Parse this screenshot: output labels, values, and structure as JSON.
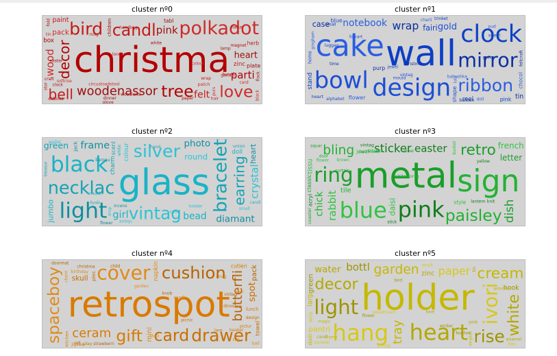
{
  "chart_data": [
    {
      "type": "wordcloud",
      "title": "cluster nº0",
      "palette": [
        "#b30000",
        "#c41a1a",
        "#d02a2a",
        "#9e0c0c"
      ],
      "words": [
        {
          "text": "christma",
          "weight": 1.0
        },
        {
          "text": "candl",
          "weight": 0.85
        },
        {
          "text": "polkadot",
          "weight": 0.55
        },
        {
          "text": "woodenassor",
          "weight": 0.42
        },
        {
          "text": "tree",
          "weight": 0.45
        },
        {
          "text": "bird",
          "weight": 0.36
        },
        {
          "text": "love",
          "weight": 0.32
        },
        {
          "text": "heart",
          "weight": 0.25
        },
        {
          "text": "decor",
          "weight": 0.25
        },
        {
          "text": "bell",
          "weight": 0.25
        },
        {
          "text": "wood",
          "weight": 0.22
        },
        {
          "text": "pink",
          "weight": 0.22
        },
        {
          "text": "parti",
          "weight": 0.22
        },
        {
          "text": "felt",
          "weight": 0.2
        },
        {
          "text": "pack",
          "weight": 0.17
        },
        {
          "text": "children",
          "weight": 0.17
        },
        {
          "text": "magnet",
          "weight": 0.14
        },
        {
          "text": "paint",
          "weight": 0.14
        },
        {
          "text": "purs",
          "weight": 0.14
        },
        {
          "text": "tabl",
          "weight": 0.14
        },
        {
          "text": "box",
          "weight": 0.12
        },
        {
          "text": "zinc",
          "weight": 0.12
        },
        {
          "text": "patch",
          "weight": 0.1
        },
        {
          "text": "plate",
          "weight": 0.1
        },
        {
          "text": "bunni",
          "weight": 0.1
        },
        {
          "text": "herb",
          "weight": 0.09
        },
        {
          "text": "hair",
          "weight": 0.09
        },
        {
          "text": "flock",
          "weight": 0.09
        },
        {
          "text": "cabinet",
          "weight": 0.09
        },
        {
          "text": "london",
          "weight": 0.09
        },
        {
          "text": "softrise",
          "weight": 0.08
        },
        {
          "text": "white",
          "weight": 0.08
        },
        {
          "text": "craft",
          "weight": 0.08
        },
        {
          "text": "wrap",
          "weight": 0.08
        },
        {
          "text": "colour",
          "weight": 0.07
        },
        {
          "text": "lamp",
          "weight": 0.07
        },
        {
          "text": "fold",
          "weight": 0.07
        },
        {
          "text": "star",
          "weight": 0.07
        },
        {
          "text": "black",
          "weight": 0.07
        },
        {
          "text": "dinner",
          "weight": 0.07
        },
        {
          "text": "natur",
          "weight": 0.06
        },
        {
          "text": "garland",
          "weight": 0.06
        },
        {
          "text": "circustoadstool",
          "weight": 0.06
        },
        {
          "text": "easter",
          "weight": 0.06
        },
        {
          "text": "woodland",
          "weight": 0.06
        },
        {
          "text": "handbag",
          "weight": 0.06
        },
        {
          "text": "tin",
          "weight": 0.06
        },
        {
          "text": "glove",
          "weight": 0.05
        },
        {
          "text": "paper",
          "weight": 0.05
        },
        {
          "text": "mug",
          "weight": 0.05
        },
        {
          "text": "card",
          "weight": 0.05
        },
        {
          "text": "clock",
          "weight": 0.05
        }
      ]
    },
    {
      "type": "wordcloud",
      "title": "cluster nº1",
      "palette": [
        "#0d3fc4",
        "#1c4fd6",
        "#2a5ee0",
        "#0b2fa0"
      ],
      "words": [
        {
          "text": "wall",
          "weight": 1.0
        },
        {
          "text": "design",
          "weight": 0.78
        },
        {
          "text": "cake",
          "weight": 0.78
        },
        {
          "text": "mirror",
          "weight": 0.6
        },
        {
          "text": "clock",
          "weight": 0.58
        },
        {
          "text": "bowl",
          "weight": 0.55
        },
        {
          "text": "ribbon",
          "weight": 0.5
        },
        {
          "text": "wrap",
          "weight": 0.48
        },
        {
          "text": "stand",
          "weight": 0.4
        },
        {
          "text": "gold",
          "weight": 0.36
        },
        {
          "text": "notebook",
          "weight": 0.28
        },
        {
          "text": "case",
          "weight": 0.28
        },
        {
          "text": "fairi",
          "weight": 0.28
        },
        {
          "text": "home",
          "weight": 0.25
        },
        {
          "text": "gingham",
          "weight": 0.22
        },
        {
          "text": "feltcraft",
          "weight": 0.2
        },
        {
          "text": "reel",
          "weight": 0.18
        },
        {
          "text": "blue",
          "weight": 0.16
        },
        {
          "text": "flower",
          "weight": 0.16
        },
        {
          "text": "purp",
          "weight": 0.15
        },
        {
          "text": "pink",
          "weight": 0.15
        },
        {
          "text": "shape",
          "weight": 0.15
        },
        {
          "text": "chocol",
          "weight": 0.14
        },
        {
          "text": "tin",
          "weight": 0.14
        },
        {
          "text": "trinket",
          "weight": 0.13
        },
        {
          "text": "folkart",
          "weight": 0.12
        },
        {
          "text": "lola",
          "weight": 0.1
        },
        {
          "text": "balloon",
          "weight": 0.1
        },
        {
          "text": "heart",
          "weight": 0.1
        },
        {
          "text": "alphabet",
          "weight": 0.1
        },
        {
          "text": "doll",
          "weight": 0.09
        },
        {
          "text": "time",
          "weight": 0.08
        },
        {
          "text": "sweet",
          "weight": 0.08
        },
        {
          "text": "mould",
          "weight": 0.08
        },
        {
          "text": "charli",
          "weight": 0.08
        },
        {
          "text": "christma",
          "weight": 0.08
        },
        {
          "text": "luggag",
          "weight": 0.08
        },
        {
          "text": "vintag",
          "weight": 0.08
        },
        {
          "text": "babushka",
          "weight": 0.07
        },
        {
          "text": "green",
          "weight": 0.07
        },
        {
          "text": "small",
          "weight": 0.07
        },
        {
          "text": "jewel",
          "weight": 0.07
        },
        {
          "text": "pud",
          "weight": 0.07
        }
      ]
    },
    {
      "type": "wordcloud",
      "title": "cluster nº2",
      "palette": [
        "#19b3c6",
        "#14a3b5",
        "#2cc2d4",
        "#0e8fa1"
      ],
      "words": [
        {
          "text": "glass",
          "weight": 1.0
        },
        {
          "text": "necklac",
          "weight": 0.95
        },
        {
          "text": "vintag",
          "weight": 0.48
        },
        {
          "text": "light",
          "weight": 0.5
        },
        {
          "text": "black",
          "weight": 0.5
        },
        {
          "text": "bracelet",
          "weight": 0.38
        },
        {
          "text": "silver",
          "weight": 0.36
        },
        {
          "text": "frame",
          "weight": 0.3
        },
        {
          "text": "bead",
          "weight": 0.28
        },
        {
          "text": "earring",
          "weight": 0.25
        },
        {
          "text": "crystal",
          "weight": 0.22
        },
        {
          "text": "photo",
          "weight": 0.18
        },
        {
          "text": "jumbo",
          "weight": 0.18
        },
        {
          "text": "green",
          "weight": 0.16
        },
        {
          "text": "round",
          "weight": 0.14
        },
        {
          "text": "diamant",
          "weight": 0.12
        },
        {
          "text": "girl",
          "weight": 0.14
        },
        {
          "text": "charm",
          "weight": 0.12
        },
        {
          "text": "colour",
          "weight": 0.12
        },
        {
          "text": "heart",
          "weight": 0.12
        },
        {
          "text": "doll",
          "weight": 0.12
        },
        {
          "text": "union",
          "weight": 0.1
        },
        {
          "text": "holder",
          "weight": 0.1
        },
        {
          "text": "incens",
          "weight": 0.1
        },
        {
          "text": "white",
          "weight": 0.1
        },
        {
          "text": "scent",
          "weight": 0.09
        },
        {
          "text": "small",
          "weight": 0.09
        },
        {
          "text": "flower",
          "weight": 0.09
        },
        {
          "text": "candl",
          "weight": 0.09
        },
        {
          "text": "hand",
          "weight": 0.09
        },
        {
          "text": "antiqu",
          "weight": 0.08
        },
        {
          "text": "jack",
          "weight": 0.08
        },
        {
          "text": "coffe",
          "weight": 0.08
        },
        {
          "text": "funki",
          "weight": 0.08
        },
        {
          "text": "drop",
          "weight": 0.08
        },
        {
          "text": "baroqu",
          "weight": 0.08
        },
        {
          "text": "wreath",
          "weight": 0.07
        },
        {
          "text": "treasur",
          "weight": 0.07
        },
        {
          "text": "wallet",
          "weight": 0.07
        }
      ]
    },
    {
      "type": "wordcloud",
      "title": "cluster nº3",
      "palette": [
        "#1a9e2a",
        "#22b233",
        "#0f7d1c",
        "#33c244"
      ],
      "words": [
        {
          "text": "metal",
          "weight": 1.0
        },
        {
          "text": "sign",
          "weight": 0.8
        },
        {
          "text": "pink",
          "weight": 0.7
        },
        {
          "text": "blue",
          "weight": 0.7
        },
        {
          "text": "ring",
          "weight": 0.45
        },
        {
          "text": "paisley",
          "weight": 0.32
        },
        {
          "text": "sticker",
          "weight": 0.26
        },
        {
          "text": "rabbit",
          "weight": 0.22
        },
        {
          "text": "retro",
          "weight": 0.28
        },
        {
          "text": "bling",
          "weight": 0.22
        },
        {
          "text": "easter",
          "weight": 0.22
        },
        {
          "text": "french",
          "weight": 0.22
        },
        {
          "text": "letter",
          "weight": 0.22
        },
        {
          "text": "chick",
          "weight": 0.2
        },
        {
          "text": "lantern",
          "weight": 0.2
        },
        {
          "text": "daisi",
          "weight": 0.2
        },
        {
          "text": "dish",
          "weight": 0.18
        },
        {
          "text": "bathroom",
          "weight": 0.17
        },
        {
          "text": "vintag",
          "weight": 0.16
        },
        {
          "text": "style",
          "weight": 0.14
        },
        {
          "text": "classic",
          "weight": 0.16
        },
        {
          "text": "tile",
          "weight": 0.16
        },
        {
          "text": "acryl",
          "weight": 0.14
        },
        {
          "text": "tissu",
          "weight": 0.14
        },
        {
          "text": "squar",
          "weight": 0.13
        },
        {
          "text": "jewel",
          "weight": 0.12
        },
        {
          "text": "yellow",
          "weight": 0.12
        },
        {
          "text": "flower",
          "weight": 0.1
        },
        {
          "text": "coaster",
          "weight": 0.1
        },
        {
          "text": "whitestorag",
          "weight": 0.09
        },
        {
          "text": "knit",
          "weight": 0.09
        },
        {
          "text": "basket",
          "weight": 0.08
        },
        {
          "text": "diner",
          "weight": 0.08
        },
        {
          "text": "door",
          "weight": 0.08
        },
        {
          "text": "stick",
          "weight": 0.08
        },
        {
          "text": "brown",
          "weight": 0.07
        },
        {
          "text": "curtain",
          "weight": 0.07
        },
        {
          "text": "kitchen",
          "weight": 0.07
        }
      ]
    },
    {
      "type": "wordcloud",
      "title": "cluster nº4",
      "palette": [
        "#d97a00",
        "#c86e00",
        "#e08a1a",
        "#b86200"
      ],
      "words": [
        {
          "text": "retrospot",
          "weight": 1.0
        },
        {
          "text": "card",
          "weight": 0.85
        },
        {
          "text": "cover",
          "weight": 0.8
        },
        {
          "text": "cushion",
          "weight": 0.65
        },
        {
          "text": "gift",
          "weight": 0.45
        },
        {
          "text": "drawer",
          "weight": 0.35
        },
        {
          "text": "spaceboy",
          "weight": 0.32
        },
        {
          "text": "butterfli",
          "weight": 0.32
        },
        {
          "text": "ceram",
          "weight": 0.3
        },
        {
          "text": "skull",
          "weight": 0.26
        },
        {
          "text": "birthday",
          "weight": 0.22
        },
        {
          "text": "doormat",
          "weight": 0.2
        },
        {
          "text": "lunch",
          "weight": 0.18
        },
        {
          "text": "spot",
          "weight": 0.18
        },
        {
          "text": "mini",
          "weight": 0.16
        },
        {
          "text": "strawberri",
          "weight": 0.14
        },
        {
          "text": "cutleri",
          "weight": 0.14
        },
        {
          "text": "design",
          "weight": 0.12
        },
        {
          "text": "napkin",
          "weight": 0.12
        },
        {
          "text": "christma",
          "weight": 0.1
        },
        {
          "text": "kitchen",
          "weight": 0.1
        },
        {
          "text": "towel",
          "weight": 0.1
        },
        {
          "text": "cherri",
          "weight": 0.1
        },
        {
          "text": "pack",
          "weight": 0.1
        },
        {
          "text": "clip",
          "weight": 0.09
        },
        {
          "text": "play",
          "weight": 0.09
        },
        {
          "text": "ball",
          "weight": 0.09
        },
        {
          "text": "vintag",
          "weight": 0.09
        },
        {
          "text": "jigsaw",
          "weight": 0.08
        },
        {
          "text": "piec",
          "weight": 0.08
        },
        {
          "text": "appl",
          "weight": 0.08
        },
        {
          "text": "knob",
          "weight": 0.08
        },
        {
          "text": "imag",
          "weight": 0.08
        },
        {
          "text": "larg",
          "weight": 0.08
        },
        {
          "text": "candl",
          "weight": 0.08
        },
        {
          "text": "child",
          "weight": 0.08
        },
        {
          "text": "pictur",
          "weight": 0.07
        },
        {
          "text": "picnic",
          "weight": 0.07
        },
        {
          "text": "shell",
          "weight": 0.07
        },
        {
          "text": "roll",
          "weight": 0.07
        },
        {
          "text": "beaker",
          "weight": 0.07
        },
        {
          "text": "dinosaur",
          "weight": 0.07
        },
        {
          "text": "garden",
          "weight": 0.07
        }
      ]
    },
    {
      "type": "wordcloud",
      "title": "cluster nº5",
      "palette": [
        "#c4b800",
        "#b3a800",
        "#d6c81a",
        "#9e9400"
      ],
      "words": [
        {
          "text": "holder",
          "weight": 1.0
        },
        {
          "text": "heart",
          "weight": 0.95
        },
        {
          "text": "hang",
          "weight": 0.72
        },
        {
          "text": "light",
          "weight": 0.45
        },
        {
          "text": "cream",
          "weight": 0.4
        },
        {
          "text": "decor",
          "weight": 0.42
        },
        {
          "text": "ivori",
          "weight": 0.42
        },
        {
          "text": "rise",
          "weight": 0.35
        },
        {
          "text": "garden",
          "weight": 0.32
        },
        {
          "text": "white",
          "weight": 0.3
        },
        {
          "text": "paper",
          "weight": 0.25
        },
        {
          "text": "bottl",
          "weight": 0.22
        },
        {
          "text": "tray",
          "weight": 0.2
        },
        {
          "text": "water",
          "weight": 0.18
        },
        {
          "text": "pantri",
          "weight": 0.18
        },
        {
          "text": "green",
          "weight": 0.16
        },
        {
          "text": "doili",
          "weight": 0.16
        },
        {
          "text": "zinc",
          "weight": 0.15
        },
        {
          "text": "small",
          "weight": 0.14
        },
        {
          "text": "hook",
          "weight": 0.14
        },
        {
          "text": "larg",
          "weight": 0.14
        },
        {
          "text": "enamel",
          "weight": 0.12
        },
        {
          "text": "parasol",
          "weight": 0.12
        },
        {
          "text": "flower",
          "weight": 0.12
        },
        {
          "text": "magic",
          "weight": 0.1
        },
        {
          "text": "candl",
          "weight": 0.1
        },
        {
          "text": "sweetheart",
          "weight": 0.1
        },
        {
          "text": "wicker",
          "weight": 0.09
        },
        {
          "text": "english",
          "weight": 0.09
        },
        {
          "text": "pink",
          "weight": 0.09
        },
        {
          "text": "wire",
          "weight": 0.09
        },
        {
          "text": "feather",
          "weight": 0.08
        },
        {
          "text": "frame",
          "weight": 0.08
        },
        {
          "text": "love",
          "weight": 0.08
        },
        {
          "text": "vintag",
          "weight": 0.08
        },
        {
          "text": "bird",
          "weight": 0.08
        },
        {
          "text": "wooden",
          "weight": 0.07
        },
        {
          "text": "tin",
          "weight": 0.07
        },
        {
          "text": "box",
          "weight": 0.07
        }
      ]
    }
  ]
}
